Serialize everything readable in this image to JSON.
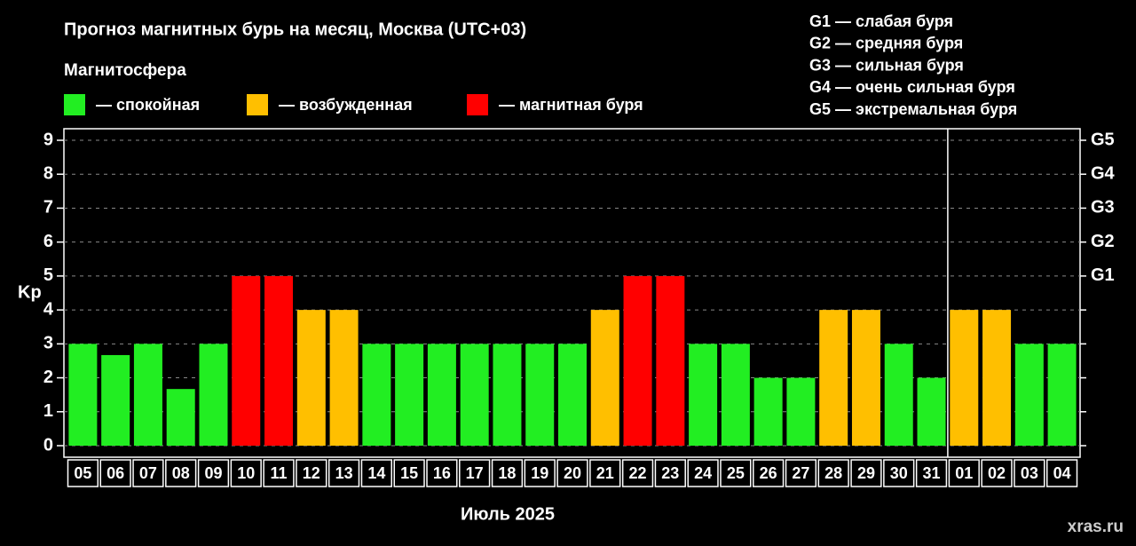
{
  "chart_data": {
    "type": "bar",
    "title": "Прогноз магнитных бурь на месяц, Москва (UTC+03)",
    "legend_title": "Магнитосфера",
    "legend": [
      {
        "name": "— спокойная",
        "color": "#22ee22"
      },
      {
        "name": "— возбужденная",
        "color": "#ffbf00"
      },
      {
        "name": "— магнитная буря",
        "color": "#ff0000"
      }
    ],
    "annotations": [
      "G1 — слабая буря",
      "G2 — средняя буря",
      "G3 — сильная буря",
      "G4 — очень сильная буря",
      "G5 — экстремальная буря"
    ],
    "categories": [
      "05",
      "06",
      "07",
      "08",
      "09",
      "10",
      "11",
      "12",
      "13",
      "14",
      "15",
      "16",
      "17",
      "18",
      "19",
      "20",
      "21",
      "22",
      "23",
      "24",
      "25",
      "26",
      "27",
      "28",
      "29",
      "30",
      "31",
      "01",
      "02",
      "03",
      "04"
    ],
    "values": [
      3,
      2.67,
      3,
      1.67,
      3,
      5,
      5,
      4,
      4,
      3,
      3,
      3,
      3,
      3,
      3,
      3,
      4,
      5,
      5,
      3,
      3,
      2,
      2,
      4,
      4,
      3,
      2,
      4,
      4,
      3,
      3
    ],
    "colors": [
      "#22ee22",
      "#22ee22",
      "#22ee22",
      "#22ee22",
      "#22ee22",
      "#ff0000",
      "#ff0000",
      "#ffbf00",
      "#ffbf00",
      "#22ee22",
      "#22ee22",
      "#22ee22",
      "#22ee22",
      "#22ee22",
      "#22ee22",
      "#22ee22",
      "#ffbf00",
      "#ff0000",
      "#ff0000",
      "#22ee22",
      "#22ee22",
      "#22ee22",
      "#22ee22",
      "#ffbf00",
      "#ffbf00",
      "#22ee22",
      "#22ee22",
      "#ffbf00",
      "#ffbf00",
      "#22ee22",
      "#22ee22"
    ],
    "xlabel": "Июль 2025",
    "ylabel": "Kp",
    "ylim": [
      0,
      9
    ],
    "yticks": [
      0,
      1,
      2,
      3,
      4,
      5,
      6,
      7,
      8,
      9
    ],
    "y2lim": [
      0,
      9
    ],
    "y2ticks": [
      {
        "value": 5,
        "label": "G1"
      },
      {
        "value": 6,
        "label": "G2"
      },
      {
        "value": 7,
        "label": "G3"
      },
      {
        "value": 8,
        "label": "G4"
      },
      {
        "value": 9,
        "label": "G5"
      }
    ],
    "grid": true,
    "watermark": "xras.ru"
  }
}
